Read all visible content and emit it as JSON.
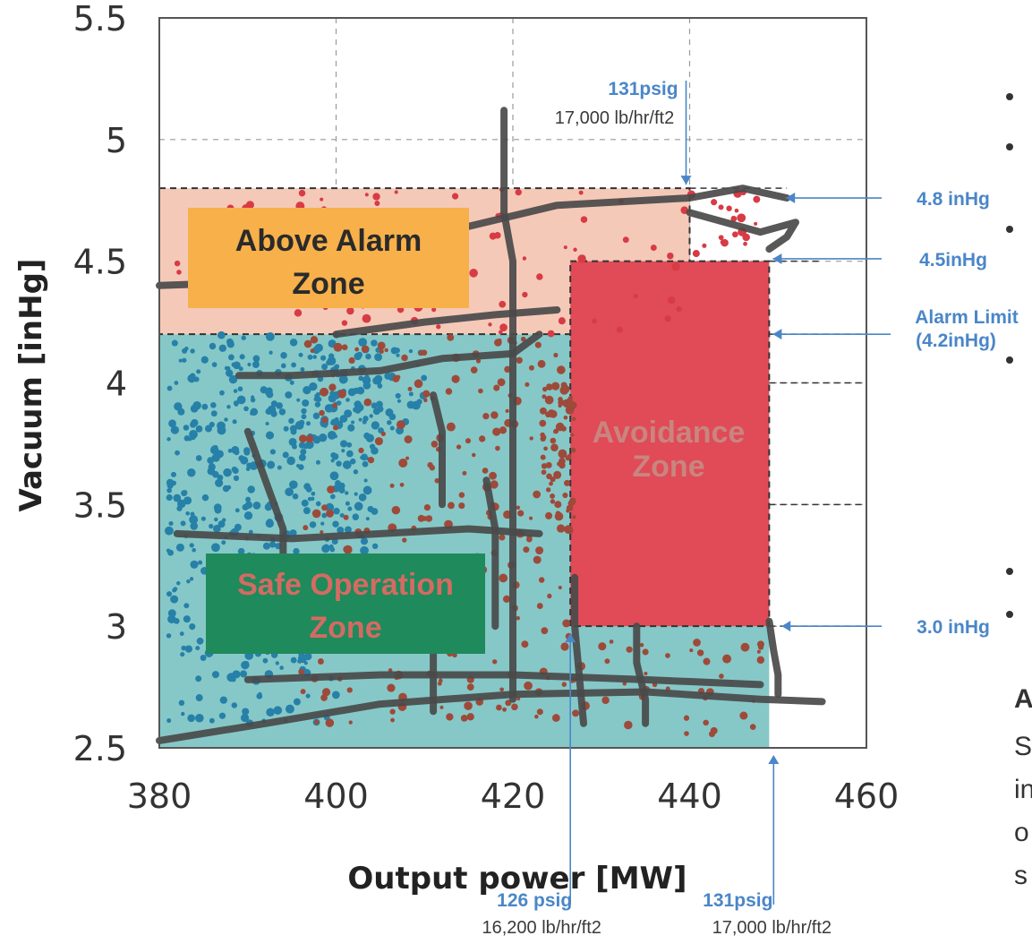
{
  "chart_data": {
    "type": "scatter",
    "xlabel": "Output power [MW]",
    "ylabel": "Vacuum [inHg]",
    "xlim": [
      380,
      460
    ],
    "ylim": [
      2.5,
      5.5
    ],
    "x_ticks": [
      "380",
      "400",
      "420",
      "440",
      "460"
    ],
    "y_ticks": [
      "2.5",
      "3",
      "3.5",
      "4",
      "4.5",
      "5",
      "5.5"
    ],
    "grid": true,
    "zones": [
      {
        "name": "Above Alarm Zone",
        "lines": [
          "Above Alarm",
          "Zone"
        ],
        "x": [
          380,
          440
        ],
        "y": [
          4.2,
          4.8
        ],
        "color": "#f5c9b8",
        "label_color": "#f7b04a",
        "text_color": "#2a2a2a"
      },
      {
        "name": "Avoidance Zone",
        "lines": [
          "Avoidance",
          "Zone"
        ],
        "x": [
          426.5,
          449
        ],
        "y": [
          3.0,
          4.5
        ],
        "color": "#e04b57",
        "text_color": "#c9857f"
      },
      {
        "name": "Safe Operation Zone",
        "lines": [
          "Safe Operation",
          "Zone"
        ],
        "x": [
          380,
          449
        ],
        "y": [
          2.5,
          4.2
        ],
        "color": "#86c8c7",
        "label_color": "#1f8a5b",
        "text_color": "#d46b63"
      }
    ],
    "annotations": [
      {
        "main": "131psig",
        "sub": "17,000 lb/hr/ft2",
        "x": 440,
        "y": 4.8,
        "pos": "top"
      },
      {
        "main": "4.8 inHg",
        "x": 450.5,
        "y": 4.76,
        "pos": "right"
      },
      {
        "main": "4.5inHg",
        "x": 449,
        "y": 4.51,
        "pos": "right"
      },
      {
        "main": "Alarm Limit",
        "sub": "(4.2inHg)",
        "x": 449,
        "y": 4.2,
        "pos": "right"
      },
      {
        "main": "3.0 inHg",
        "x": 450,
        "y": 3.0,
        "pos": "right"
      },
      {
        "main": "126 psig",
        "sub": "16,200 lb/hr/ft2",
        "x": 426.5,
        "y": 3.0,
        "pos": "bottom"
      },
      {
        "main": "131psig",
        "sub": "17,000 lb/hr/ft2",
        "x": 449.5,
        "y": 2.5,
        "pos": "bottom"
      }
    ],
    "series": [
      {
        "type": "trajectory",
        "color": "#4a4a4a",
        "points": [
          [
            380,
            4.4
          ],
          [
            395,
            4.42
          ],
          [
            410,
            4.6
          ],
          [
            425,
            4.73
          ],
          [
            440,
            4.76
          ],
          [
            446,
            4.8
          ],
          [
            451,
            4.76
          ]
        ]
      },
      {
        "type": "trajectory",
        "color": "#4a4a4a",
        "points": [
          [
            419,
            5.12
          ],
          [
            419,
            4.9
          ],
          [
            419,
            4.7
          ],
          [
            420,
            4.5
          ],
          [
            420,
            4.2
          ],
          [
            420,
            3.6
          ],
          [
            420,
            3.1
          ],
          [
            420,
            2.7
          ]
        ]
      },
      {
        "type": "trajectory",
        "color": "#4a4a4a",
        "points": [
          [
            389,
            4.03
          ],
          [
            395,
            4.03
          ],
          [
            405,
            4.05
          ],
          [
            412,
            4.1
          ],
          [
            420,
            4.12
          ],
          [
            423,
            4.2
          ]
        ]
      },
      {
        "type": "trajectory",
        "color": "#4a4a4a",
        "points": [
          [
            382,
            3.38
          ],
          [
            395,
            3.36
          ],
          [
            405,
            3.38
          ],
          [
            415,
            3.4
          ],
          [
            423,
            3.38
          ]
        ]
      },
      {
        "type": "trajectory",
        "color": "#4a4a4a",
        "points": [
          [
            380,
            2.53
          ],
          [
            392,
            2.6
          ],
          [
            405,
            2.68
          ],
          [
            420,
            2.72
          ],
          [
            435,
            2.73
          ],
          [
            448,
            2.7
          ],
          [
            455,
            2.69
          ]
        ]
      },
      {
        "type": "trajectory",
        "color": "#4a4a4a",
        "points": [
          [
            390,
            2.78
          ],
          [
            405,
            2.8
          ],
          [
            420,
            2.8
          ],
          [
            435,
            2.78
          ],
          [
            448,
            2.76
          ]
        ]
      },
      {
        "type": "trajectory",
        "color": "#4a4a4a",
        "points": [
          [
            440,
            4.7
          ],
          [
            448,
            4.62
          ],
          [
            452,
            4.66
          ],
          [
            451,
            4.6
          ],
          [
            449,
            4.55
          ]
        ]
      },
      {
        "type": "trajectory",
        "color": "#4a4a4a",
        "points": [
          [
            449,
            3.02
          ],
          [
            449.5,
            2.9
          ],
          [
            450,
            2.8
          ],
          [
            450,
            2.72
          ]
        ]
      },
      {
        "type": "trajectory",
        "color": "#4a4a4a",
        "points": [
          [
            411,
            3.95
          ],
          [
            412,
            3.8
          ],
          [
            412,
            3.65
          ],
          [
            412,
            3.5
          ]
        ]
      },
      {
        "type": "trajectory",
        "color": "#4a4a4a",
        "points": [
          [
            390,
            3.8
          ],
          [
            392,
            3.6
          ],
          [
            394,
            3.4
          ],
          [
            394,
            3.25
          ]
        ]
      },
      {
        "type": "trajectory",
        "color": "#4a4a4a",
        "points": [
          [
            400,
            4.2
          ],
          [
            410,
            4.25
          ],
          [
            418,
            4.28
          ],
          [
            425,
            4.3
          ]
        ]
      },
      {
        "type": "trajectory",
        "color": "#4a4a4a",
        "points": [
          [
            427,
            3.2
          ],
          [
            427,
            3.0
          ],
          [
            427.5,
            2.8
          ],
          [
            428,
            2.6
          ]
        ]
      },
      {
        "type": "trajectory",
        "color": "#4a4a4a",
        "points": [
          [
            434,
            3.0
          ],
          [
            434,
            2.85
          ],
          [
            435,
            2.7
          ],
          [
            435,
            2.6
          ]
        ]
      },
      {
        "type": "trajectory",
        "color": "#4a4a4a",
        "points": [
          [
            411,
            2.95
          ],
          [
            411,
            2.8
          ],
          [
            411,
            2.65
          ]
        ]
      },
      {
        "type": "trajectory",
        "color": "#4a4a4a",
        "points": [
          [
            417,
            3.6
          ],
          [
            418,
            3.4
          ],
          [
            418,
            3.2
          ],
          [
            418,
            3.0
          ]
        ]
      }
    ],
    "scatter_clusters": [
      {
        "color": "#2680a8",
        "count": 360,
        "x": [
          381,
          405
        ],
        "y": [
          3.3,
          4.2
        ]
      },
      {
        "color": "#2680a8",
        "count": 140,
        "x": [
          381,
          400
        ],
        "y": [
          2.6,
          3.3
        ]
      },
      {
        "color": "#2680a8",
        "count": 50,
        "x": [
          398,
          410
        ],
        "y": [
          3.8,
          4.15
        ]
      },
      {
        "color": "#9e4a3a",
        "count": 260,
        "x": [
          396,
          427
        ],
        "y": [
          2.6,
          4.2
        ]
      },
      {
        "color": "#9e4a3a",
        "count": 60,
        "x": [
          423,
          427
        ],
        "y": [
          3.4,
          4.0
        ]
      },
      {
        "color": "#9e4a3a",
        "count": 40,
        "x": [
          427,
          449
        ],
        "y": [
          2.55,
          2.95
        ]
      },
      {
        "color": "#d83b45",
        "count": 80,
        "x": [
          381,
          440
        ],
        "y": [
          4.2,
          4.8
        ]
      },
      {
        "color": "#d83b45",
        "count": 20,
        "x": [
          440,
          448
        ],
        "y": [
          4.5,
          4.8
        ]
      }
    ]
  },
  "side_panel": {
    "heading": "A",
    "lines": [
      "S",
      "in",
      "o",
      "s"
    ]
  }
}
